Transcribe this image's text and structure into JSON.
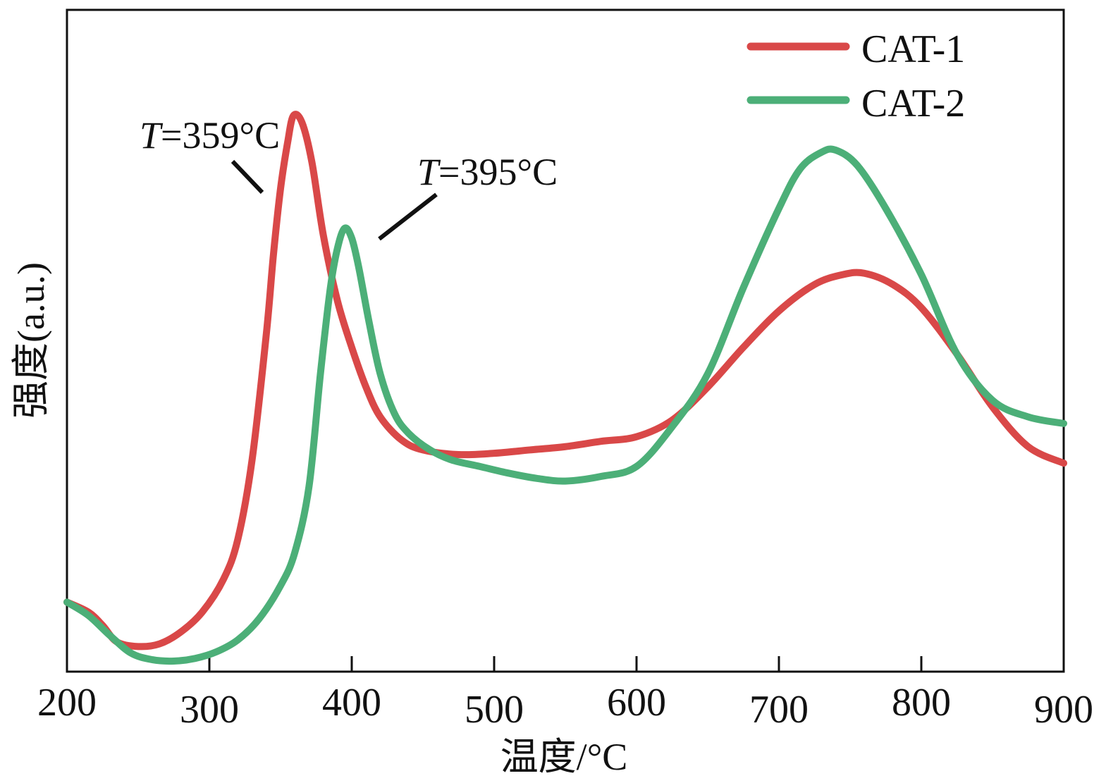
{
  "chart_data": {
    "type": "line",
    "xlabel": "温度/°C",
    "ylabel": "强度(a.u.)",
    "xlim": [
      200,
      900
    ],
    "xticks": [
      200,
      300,
      400,
      500,
      600,
      700,
      800,
      900
    ],
    "yticks_shown": false,
    "ylim": [
      0,
      100
    ],
    "legend_position": "top-right",
    "series": [
      {
        "name": "CAT-1",
        "color": "#d94848",
        "x": [
          200,
          215,
          225,
          235,
          250,
          265,
          280,
          295,
          310,
          320,
          330,
          340,
          345,
          350,
          355,
          359,
          365,
          372,
          380,
          390,
          400,
          410,
          420,
          435,
          450,
          475,
          500,
          525,
          550,
          575,
          600,
          625,
          650,
          675,
          700,
          725,
          745,
          760,
          780,
          800,
          825,
          850,
          875,
          900
        ],
        "y": [
          10.5,
          9.0,
          7.0,
          4.5,
          3.8,
          4.2,
          6.0,
          9.0,
          14.0,
          20.0,
          32.0,
          51.0,
          63.0,
          73.0,
          80.0,
          84.0,
          83.0,
          77.0,
          66.0,
          56.0,
          49.0,
          43.0,
          38.5,
          35.0,
          33.5,
          32.8,
          33.0,
          33.5,
          34.0,
          34.8,
          35.5,
          38.0,
          43.0,
          49.0,
          54.5,
          58.5,
          60.0,
          60.2,
          58.5,
          55.0,
          48.0,
          40.0,
          34.0,
          31.5
        ]
      },
      {
        "name": "CAT-2",
        "color": "#4caf78",
        "x": [
          200,
          215,
          230,
          245,
          260,
          275,
          290,
          305,
          320,
          335,
          350,
          360,
          370,
          378,
          385,
          390,
          395,
          400,
          405,
          412,
          420,
          430,
          440,
          455,
          470,
          490,
          510,
          530,
          550,
          575,
          600,
          625,
          650,
          675,
          700,
          715,
          730,
          740,
          755,
          775,
          800,
          825,
          850,
          875,
          900
        ],
        "y": [
          10.5,
          8.5,
          5.5,
          2.8,
          1.8,
          1.6,
          2.0,
          3.0,
          4.8,
          8.0,
          13.0,
          18.0,
          28.0,
          45.0,
          58.0,
          64.0,
          67.0,
          65.5,
          61.0,
          53.0,
          45.0,
          39.0,
          36.0,
          33.5,
          32.0,
          31.0,
          30.0,
          29.2,
          28.8,
          29.5,
          31.0,
          37.0,
          45.0,
          58.0,
          70.0,
          76.0,
          78.5,
          78.8,
          76.5,
          70.0,
          60.0,
          48.0,
          41.0,
          38.5,
          37.5
        ]
      }
    ],
    "annotations": [
      {
        "text_italic": "T",
        "text_rest": "=359°C",
        "x": 359
      },
      {
        "text_italic": "T",
        "text_rest": "=395°C",
        "x": 395
      }
    ]
  }
}
